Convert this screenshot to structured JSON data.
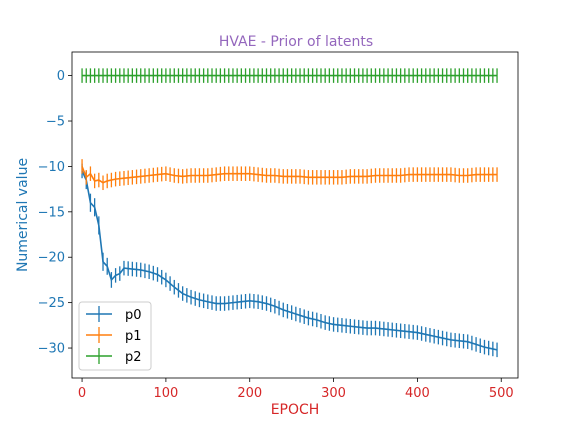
{
  "chart_data": {
    "type": "line",
    "title": "HVAE - Prior of latents",
    "xlabel": "EPOCH",
    "ylabel": "Numerical value",
    "xlim": [
      -12,
      520
    ],
    "ylim": [
      -33.3,
      2.6
    ],
    "x_ticks": [
      0,
      100,
      200,
      300,
      400,
      500
    ],
    "y_ticks": [
      0,
      -5,
      -10,
      -15,
      -20,
      -25,
      -30
    ],
    "x_tick_labels": [
      "0",
      "100",
      "200",
      "300",
      "400",
      "500"
    ],
    "y_tick_labels": [
      "0",
      "−5",
      "−10",
      "−15",
      "−20",
      "−25",
      "−30"
    ],
    "grid": false,
    "legend_position": "lower-left",
    "errorbar_x_step": 5,
    "series": [
      {
        "name": "p0",
        "color": "#1f77b4",
        "points": [
          [
            0,
            -10.5
          ],
          [
            5,
            -11.5
          ],
          [
            10,
            -14.0
          ],
          [
            15,
            -14.5
          ],
          [
            20,
            -16.5
          ],
          [
            25,
            -20.5
          ],
          [
            30,
            -21.0
          ],
          [
            35,
            -22.5
          ],
          [
            40,
            -22.0
          ],
          [
            45,
            -21.8
          ],
          [
            50,
            -21.2
          ],
          [
            60,
            -21.3
          ],
          [
            70,
            -21.4
          ],
          [
            80,
            -21.6
          ],
          [
            90,
            -21.9
          ],
          [
            100,
            -22.5
          ],
          [
            110,
            -23.3
          ],
          [
            120,
            -24.0
          ],
          [
            130,
            -24.4
          ],
          [
            140,
            -24.7
          ],
          [
            150,
            -24.9
          ],
          [
            160,
            -25.1
          ],
          [
            170,
            -25.1
          ],
          [
            180,
            -25.0
          ],
          [
            190,
            -24.9
          ],
          [
            200,
            -24.8
          ],
          [
            210,
            -24.9
          ],
          [
            220,
            -25.1
          ],
          [
            230,
            -25.4
          ],
          [
            240,
            -25.8
          ],
          [
            250,
            -26.1
          ],
          [
            260,
            -26.4
          ],
          [
            270,
            -26.7
          ],
          [
            280,
            -26.9
          ],
          [
            290,
            -27.2
          ],
          [
            300,
            -27.4
          ],
          [
            310,
            -27.5
          ],
          [
            320,
            -27.6
          ],
          [
            330,
            -27.7
          ],
          [
            340,
            -27.8
          ],
          [
            350,
            -27.8
          ],
          [
            360,
            -27.9
          ],
          [
            370,
            -28.0
          ],
          [
            380,
            -28.1
          ],
          [
            390,
            -28.2
          ],
          [
            400,
            -28.3
          ],
          [
            410,
            -28.5
          ],
          [
            420,
            -28.7
          ],
          [
            430,
            -28.9
          ],
          [
            440,
            -29.1
          ],
          [
            450,
            -29.2
          ],
          [
            460,
            -29.3
          ],
          [
            470,
            -29.6
          ],
          [
            480,
            -29.9
          ],
          [
            490,
            -30.1
          ],
          [
            495,
            -30.2
          ]
        ],
        "error": [
          [
            0,
            0.8
          ],
          [
            5,
            1.0
          ],
          [
            10,
            1.0
          ],
          [
            15,
            1.0
          ],
          [
            20,
            1.0
          ],
          [
            25,
            1.0
          ],
          [
            40,
            0.8
          ],
          [
            100,
            0.8
          ],
          [
            495,
            0.8
          ]
        ]
      },
      {
        "name": "p1",
        "color": "#ff7f0e",
        "points": [
          [
            0,
            -10.0
          ],
          [
            5,
            -11.2
          ],
          [
            10,
            -10.8
          ],
          [
            15,
            -11.6
          ],
          [
            20,
            -11.5
          ],
          [
            25,
            -11.8
          ],
          [
            30,
            -11.6
          ],
          [
            40,
            -11.4
          ],
          [
            50,
            -11.3
          ],
          [
            60,
            -11.2
          ],
          [
            70,
            -11.1
          ],
          [
            80,
            -11.0
          ],
          [
            90,
            -10.9
          ],
          [
            100,
            -10.8
          ],
          [
            110,
            -11.0
          ],
          [
            120,
            -11.1
          ],
          [
            130,
            -11.0
          ],
          [
            140,
            -11.0
          ],
          [
            150,
            -11.0
          ],
          [
            160,
            -10.9
          ],
          [
            170,
            -10.8
          ],
          [
            180,
            -10.8
          ],
          [
            190,
            -10.8
          ],
          [
            200,
            -10.8
          ],
          [
            210,
            -10.9
          ],
          [
            220,
            -11.0
          ],
          [
            230,
            -11.0
          ],
          [
            240,
            -11.1
          ],
          [
            250,
            -11.1
          ],
          [
            260,
            -11.1
          ],
          [
            270,
            -11.2
          ],
          [
            280,
            -11.2
          ],
          [
            290,
            -11.2
          ],
          [
            300,
            -11.2
          ],
          [
            310,
            -11.2
          ],
          [
            320,
            -11.1
          ],
          [
            330,
            -11.1
          ],
          [
            340,
            -11.1
          ],
          [
            350,
            -11.0
          ],
          [
            360,
            -11.0
          ],
          [
            370,
            -11.0
          ],
          [
            380,
            -11.0
          ],
          [
            390,
            -10.9
          ],
          [
            400,
            -10.9
          ],
          [
            410,
            -10.9
          ],
          [
            420,
            -10.9
          ],
          [
            430,
            -10.9
          ],
          [
            440,
            -10.9
          ],
          [
            450,
            -11.0
          ],
          [
            460,
            -11.0
          ],
          [
            470,
            -10.9
          ],
          [
            480,
            -10.9
          ],
          [
            490,
            -10.9
          ],
          [
            495,
            -10.9
          ]
        ],
        "error": [
          [
            0,
            0.8
          ],
          [
            495,
            0.8
          ]
        ]
      },
      {
        "name": "p2",
        "color": "#2ca02c",
        "points": [
          [
            0,
            0.0
          ],
          [
            495,
            0.0
          ]
        ],
        "error": [
          [
            0,
            0.8
          ],
          [
            495,
            0.8
          ]
        ]
      }
    ]
  }
}
